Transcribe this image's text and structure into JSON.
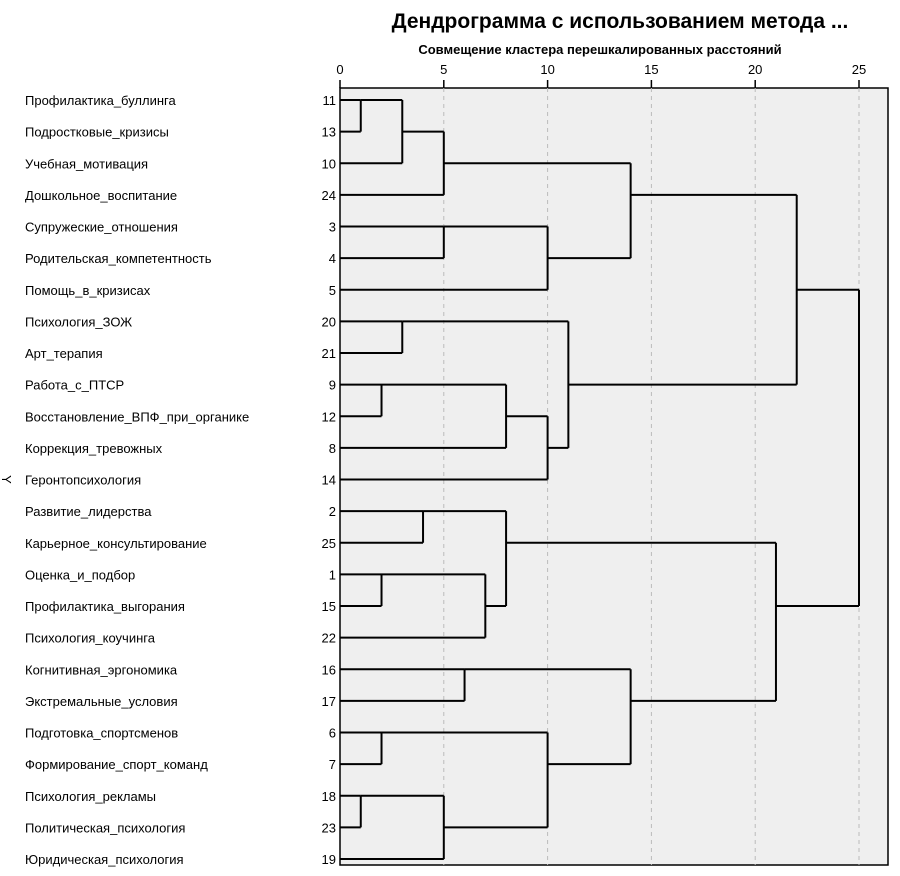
{
  "chart_data": {
    "type": "dendrogram",
    "title": "Дендрограмма с использованием метода ...",
    "xlabel": "Совмещение кластера перешкалированных расстояний",
    "ylabel": "Y",
    "xlim": [
      0,
      25
    ],
    "xticks": [
      "0",
      "5",
      "10",
      "15",
      "20",
      "25"
    ],
    "grid": true,
    "leaves": [
      {
        "label": "Профилактика_буллинга",
        "case": "11"
      },
      {
        "label": "Подростковые_кризисы",
        "case": "13"
      },
      {
        "label": "Учебная_мотивация",
        "case": "10"
      },
      {
        "label": "Дошкольное_воспитание",
        "case": "24"
      },
      {
        "label": "Супружеские_отношения",
        "case": "3"
      },
      {
        "label": "Родительская_компетентность",
        "case": "4"
      },
      {
        "label": "Помощь_в_кризисах",
        "case": "5"
      },
      {
        "label": "Психология_ЗОЖ",
        "case": "20"
      },
      {
        "label": "Арт_терапия",
        "case": "21"
      },
      {
        "label": "Работа_с_ПТСР",
        "case": "9"
      },
      {
        "label": "Восстановление_ВПФ_при_органике",
        "case": "12"
      },
      {
        "label": "Коррекция_тревожных",
        "case": "8"
      },
      {
        "label": "Геронтопсихология",
        "case": "14"
      },
      {
        "label": "Развитие_лидерства",
        "case": "2"
      },
      {
        "label": "Карьерное_консультирование",
        "case": "25"
      },
      {
        "label": "Оценка_и_подбор",
        "case": "1"
      },
      {
        "label": "Профилактика_выгорания",
        "case": "15"
      },
      {
        "label": "Психология_коучинга",
        "case": "22"
      },
      {
        "label": "Когнитивная_эргономика",
        "case": "16"
      },
      {
        "label": "Экстремальные_условия",
        "case": "17"
      },
      {
        "label": "Подготовка_спортсменов",
        "case": "6"
      },
      {
        "label": "Формирование_спорт_команд",
        "case": "7"
      },
      {
        "label": "Психология_рекламы",
        "case": "18"
      },
      {
        "label": "Политическая_психология",
        "case": "23"
      },
      {
        "label": "Юридическая_психология",
        "case": "19"
      }
    ],
    "merges_note": "node ids: 0-24 = leaves in display order; merge k creates node 25+k",
    "merges": [
      [
        0,
        1,
        1
      ],
      [
        25,
        2,
        3
      ],
      [
        26,
        3,
        5
      ],
      [
        4,
        5,
        5
      ],
      [
        28,
        6,
        10
      ],
      [
        27,
        29,
        14
      ],
      [
        7,
        8,
        3
      ],
      [
        9,
        10,
        2
      ],
      [
        32,
        11,
        8
      ],
      [
        33,
        12,
        10
      ],
      [
        31,
        34,
        11
      ],
      [
        30,
        35,
        22
      ],
      [
        13,
        14,
        4
      ],
      [
        15,
        16,
        2
      ],
      [
        38,
        17,
        7
      ],
      [
        37,
        39,
        8
      ],
      [
        18,
        19,
        6
      ],
      [
        20,
        21,
        2
      ],
      [
        22,
        23,
        1
      ],
      [
        43,
        24,
        5
      ],
      [
        42,
        44,
        10
      ],
      [
        41,
        45,
        14
      ],
      [
        40,
        46,
        21
      ],
      [
        36,
        47,
        25
      ]
    ]
  }
}
